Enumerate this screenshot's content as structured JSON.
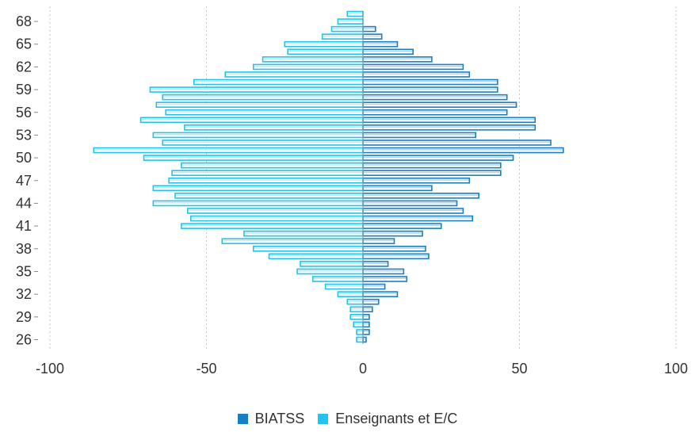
{
  "chart_data": {
    "type": "bar",
    "orientation": "horizontal",
    "subtype": "population-pyramid",
    "categories": [
      "26",
      "27",
      "28",
      "29",
      "30",
      "31",
      "32",
      "33",
      "34",
      "35",
      "36",
      "37",
      "38",
      "39",
      "40",
      "41",
      "42",
      "43",
      "44",
      "45",
      "46",
      "47",
      "48",
      "49",
      "50",
      "51",
      "52",
      "53",
      "54",
      "55",
      "56",
      "57",
      "58",
      "59",
      "60",
      "61",
      "62",
      "63",
      "64",
      "65",
      "66",
      "67",
      "68",
      "69"
    ],
    "tick_labels": [
      "68",
      "65",
      "62",
      "59",
      "56",
      "53",
      "50",
      "47",
      "44",
      "41",
      "38",
      "35",
      "32",
      "29",
      "26"
    ],
    "series": [
      {
        "name": "BIATSS",
        "color": "#1a7fc0",
        "values": [
          1,
          2,
          2,
          2,
          3,
          5,
          11,
          7,
          14,
          13,
          8,
          21,
          20,
          10,
          19,
          25,
          35,
          32,
          30,
          37,
          22,
          34,
          44,
          44,
          48,
          64,
          60,
          36,
          55,
          55,
          46,
          49,
          46,
          43,
          43,
          34,
          32,
          22,
          16,
          11,
          6,
          4,
          0,
          0
        ]
      },
      {
        "name": "Enseignants et E/C",
        "color": "#22c4ee",
        "values": [
          -2,
          -2,
          -3,
          -4,
          -4,
          -5,
          -8,
          -12,
          -16,
          -21,
          -20,
          -30,
          -35,
          -45,
          -38,
          -58,
          -55,
          -56,
          -67,
          -60,
          -67,
          -62,
          -61,
          -58,
          -70,
          -86,
          -64,
          -67,
          -57,
          -71,
          -63,
          -66,
          -64,
          -68,
          -54,
          -44,
          -35,
          -32,
          -24,
          -25,
          -13,
          -10,
          -8,
          -5
        ]
      }
    ],
    "x_ticks": [
      "-100",
      "-50",
      "0",
      "50",
      "100"
    ],
    "xlim": [
      -100,
      100
    ],
    "grid": "vertical dashed",
    "legend": {
      "position": "bottom-center",
      "items": [
        {
          "label": "BIATSS",
          "color": "#1a7fc0"
        },
        {
          "label": "Enseignants et E/C",
          "color": "#22c4ee"
        }
      ]
    }
  }
}
